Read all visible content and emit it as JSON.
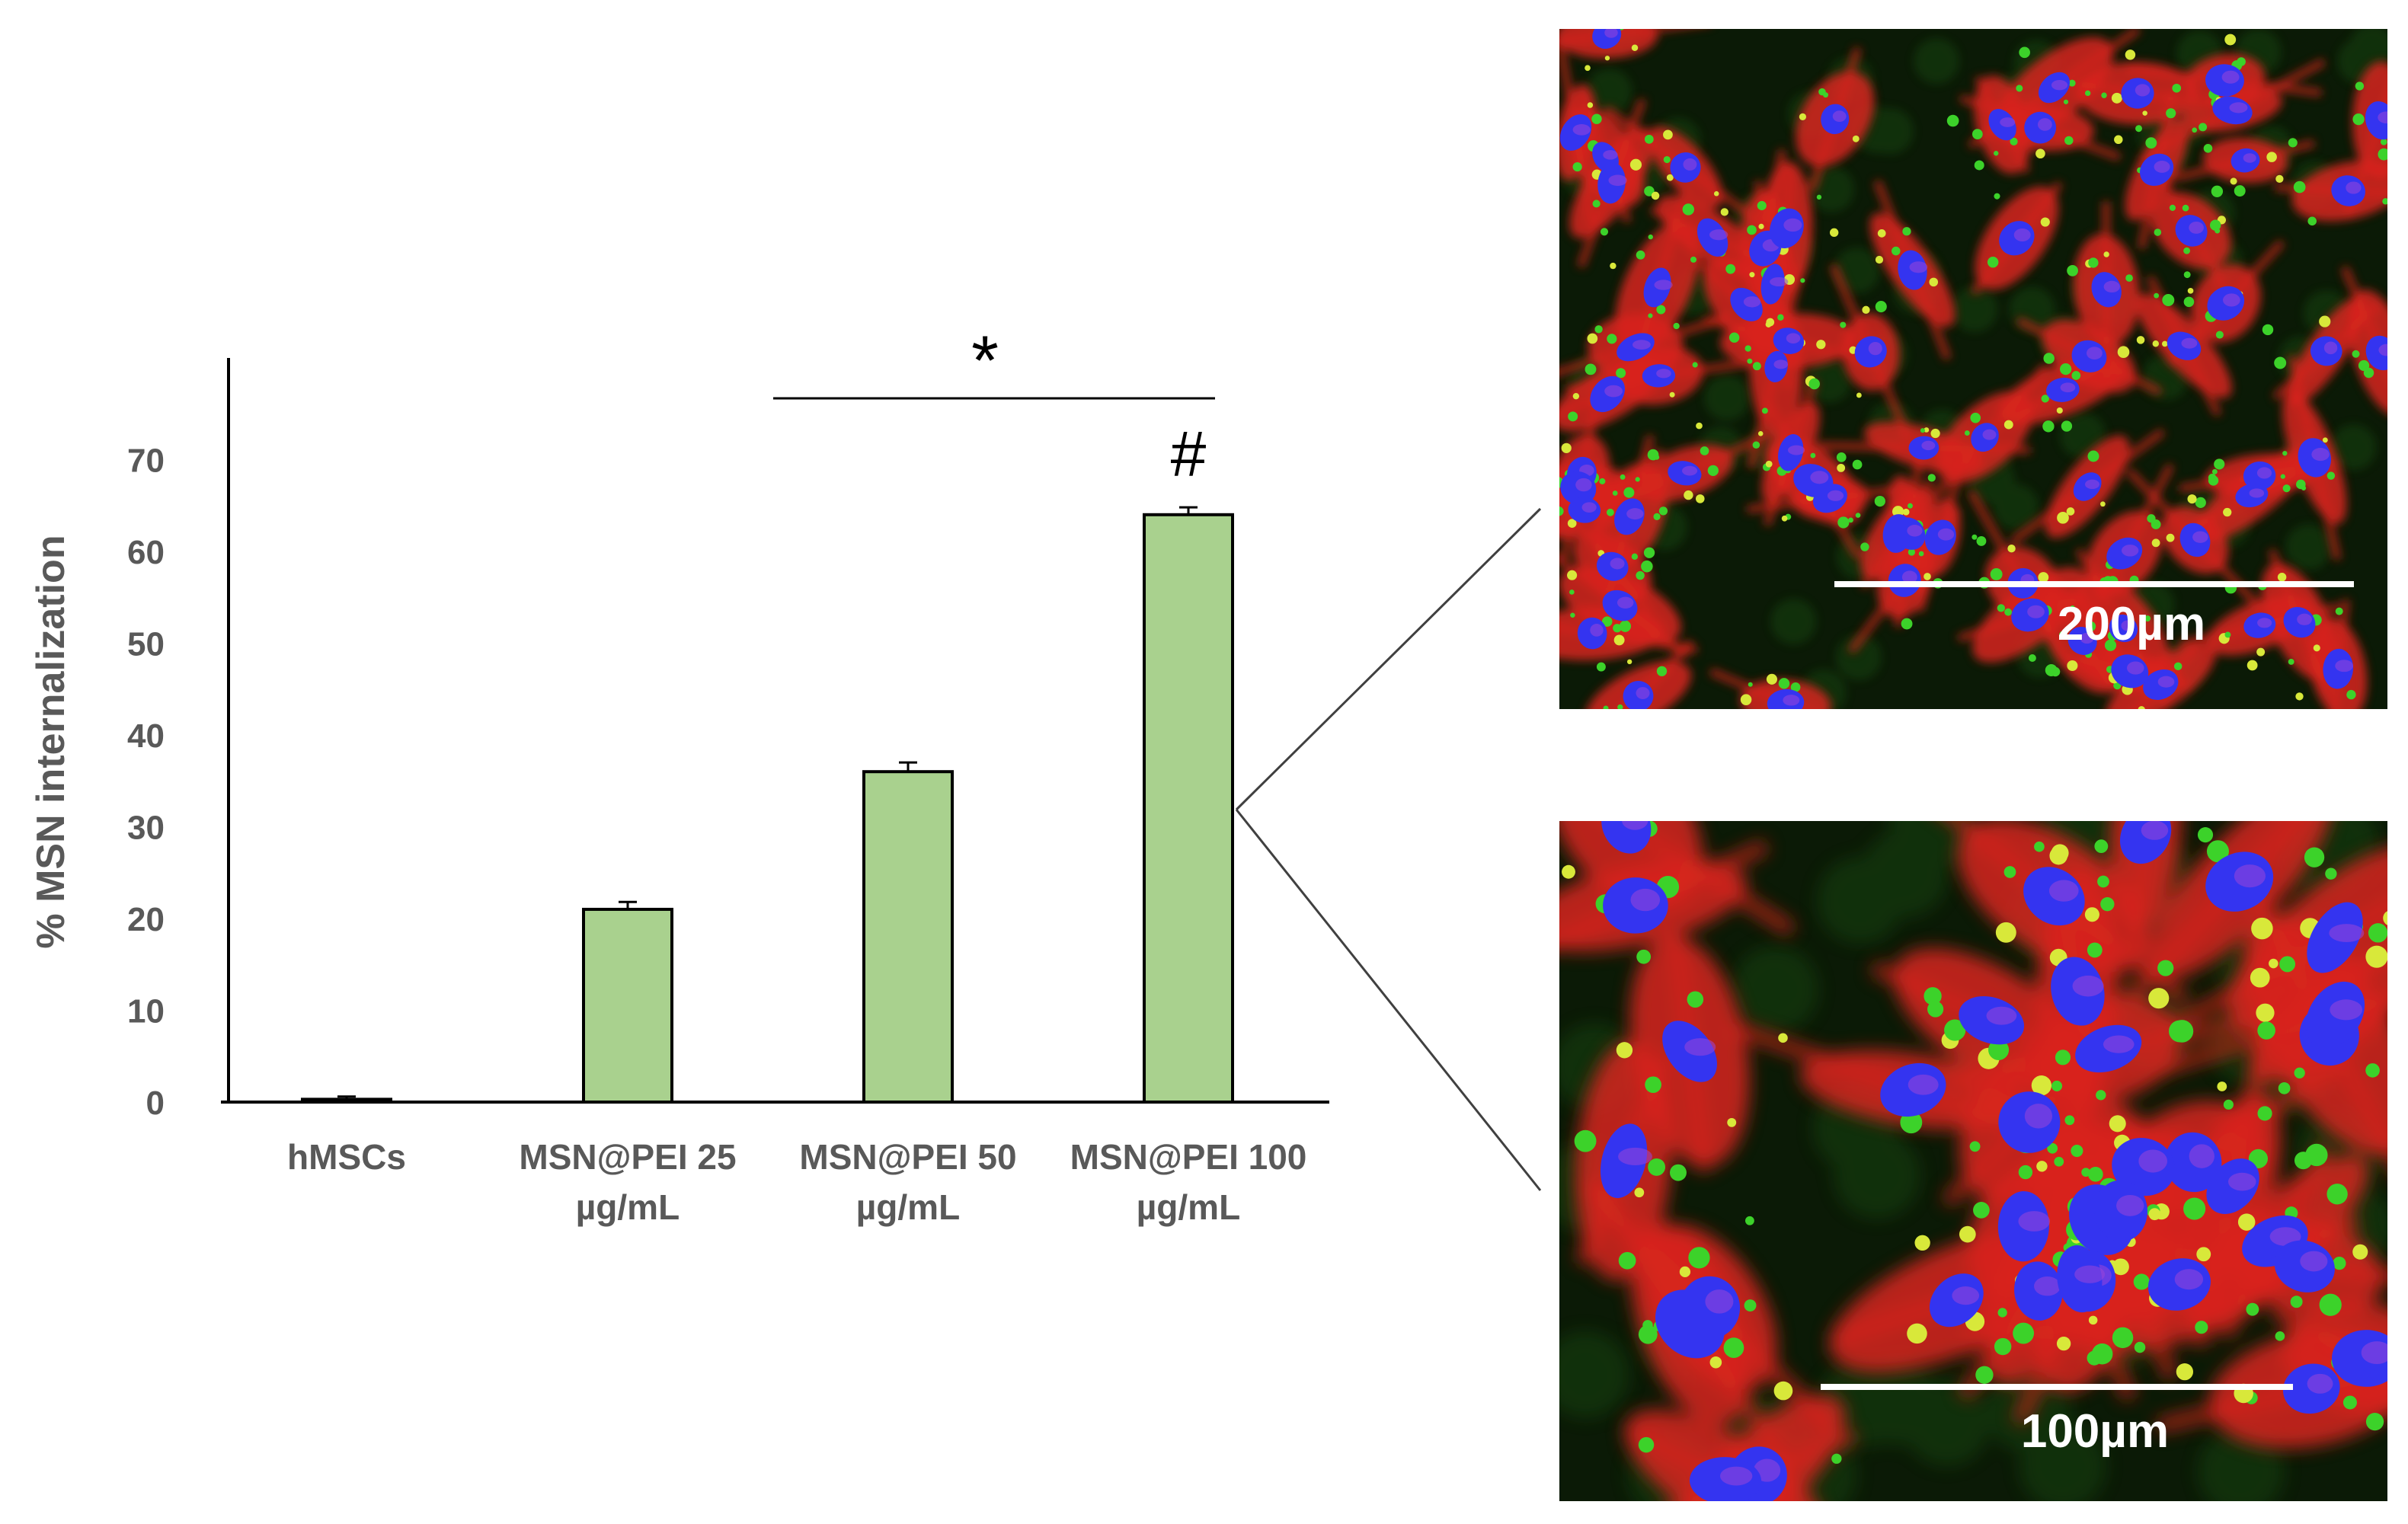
{
  "chart_data": {
    "type": "bar",
    "categories": [
      [
        "hMSCs"
      ],
      [
        "MSN@PEI 25",
        "µg/mL"
      ],
      [
        "MSN@PEI 50",
        "µg/mL"
      ],
      [
        "MSN@PEI 100",
        "µg/mL"
      ]
    ],
    "values": [
      0.3,
      21,
      36,
      64
    ],
    "errors": [
      0.3,
      0.8,
      1.0,
      0.8
    ],
    "ylabel": "% MSN internalization",
    "ylim": [
      0,
      80
    ],
    "yticks": [
      0,
      10,
      20,
      30,
      40,
      50,
      60,
      70
    ],
    "bar_color": "#a9d18e",
    "grid": false,
    "significance": {
      "bracket_label": "*",
      "bracket_from_category": 2,
      "bracket_to_category": 3,
      "bar_marker_label": "#",
      "bar_marker_category": 3
    }
  },
  "micrographs": [
    {
      "scale_bar_label": "200µm"
    },
    {
      "scale_bar_label": "100µm"
    }
  ],
  "colors": {
    "axis": "#000000",
    "tick_text": "#595959",
    "micrograph_background": "#0b1a06",
    "nucleus": "#3434f0",
    "actin": "#d8251c",
    "particles": "#3cd22a"
  }
}
